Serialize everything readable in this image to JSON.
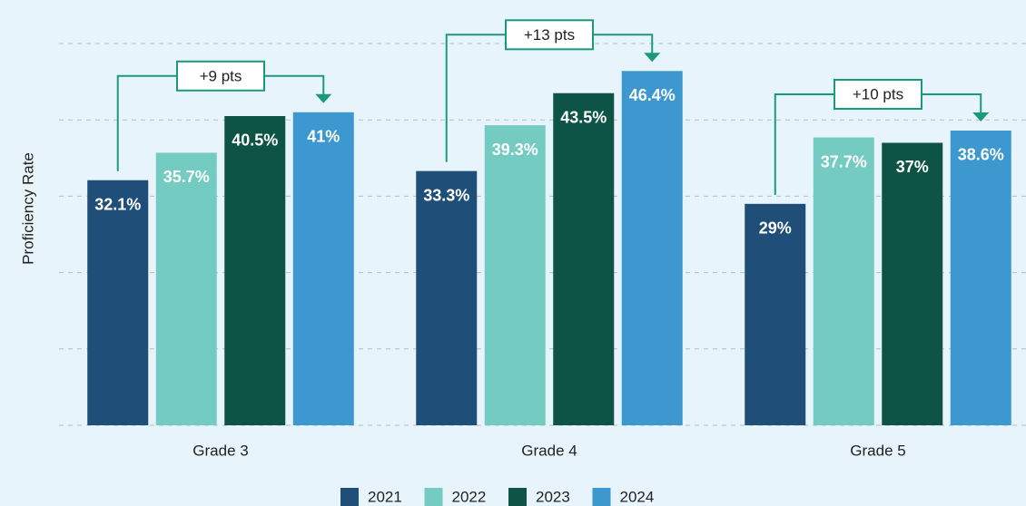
{
  "chart_data": {
    "type": "bar",
    "y_label": "Proficiency Rate",
    "categories": [
      "Grade 3",
      "Grade 4",
      "Grade 5"
    ],
    "series": [
      {
        "name": "2021",
        "color": "#1f4e79",
        "values": [
          32.1,
          33.3,
          29
        ],
        "value_labels": [
          "32.1%",
          "33.3%",
          "29%"
        ]
      },
      {
        "name": "2022",
        "color": "#74cbc1",
        "values": [
          35.7,
          39.3,
          37.7
        ],
        "value_labels": [
          "35.7%",
          "39.3%",
          "37.7%"
        ]
      },
      {
        "name": "2023",
        "color": "#0d5446",
        "values": [
          40.5,
          43.5,
          37
        ],
        "value_labels": [
          "40.5%",
          "43.5%",
          "37%"
        ]
      },
      {
        "name": "2024",
        "color": "#3d98d0",
        "values": [
          41,
          46.4,
          38.6
        ],
        "value_labels": [
          "41%",
          "46.4%",
          "38.6%"
        ]
      }
    ],
    "annotations": [
      "+9 pts",
      "+13 pts",
      "+10 pts"
    ],
    "annotation_color": "#1a9a7a",
    "ylim": [
      0,
      50
    ],
    "yticks": [
      0,
      10,
      20,
      30,
      40,
      50
    ],
    "grid": true,
    "legend": "bottom"
  }
}
